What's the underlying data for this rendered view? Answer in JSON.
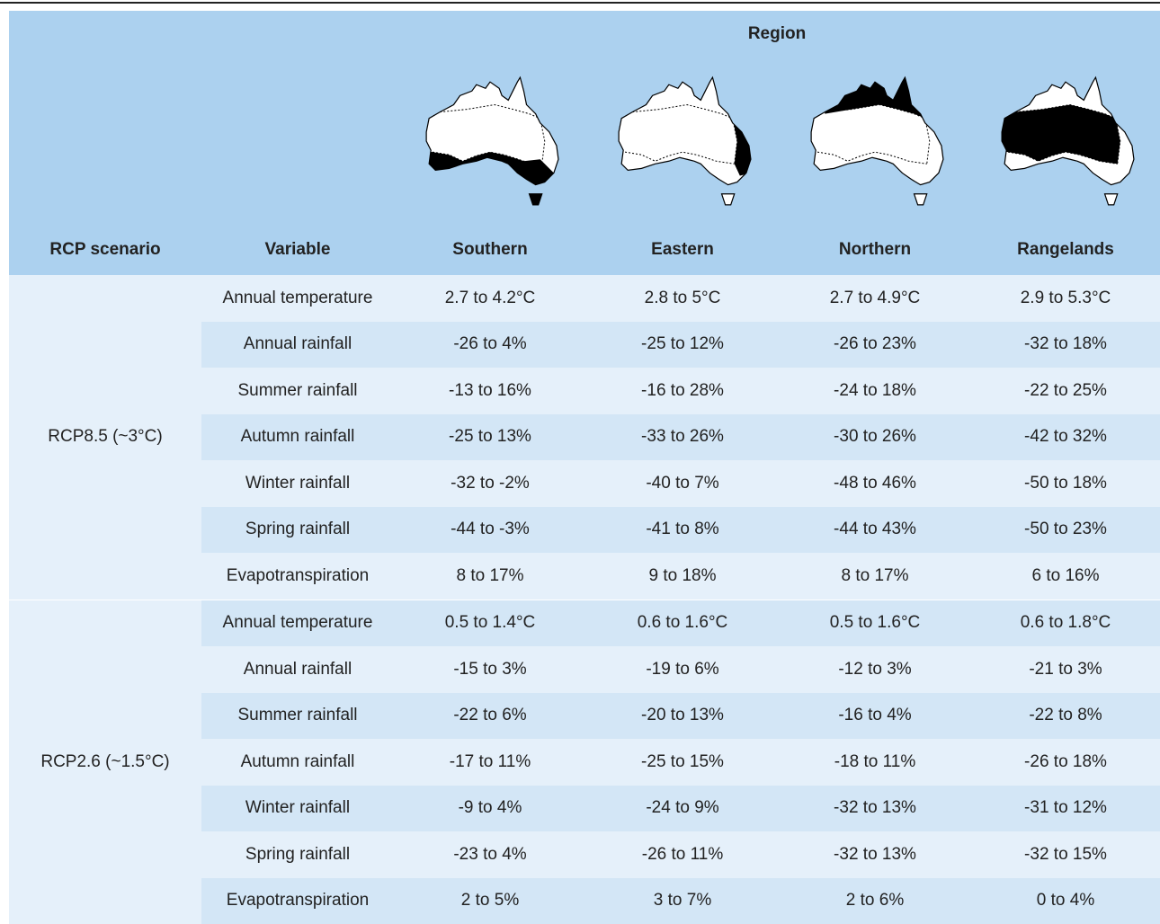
{
  "header": {
    "region": "Region",
    "columns": [
      "RCP scenario",
      "Variable",
      "Southern",
      "Eastern",
      "Northern",
      "Rangelands"
    ]
  },
  "groups": [
    {
      "scenario": "RCP8.5 (~3°C)",
      "rows": [
        [
          "Annual temperature",
          "2.7 to 4.2°C",
          "2.8 to 5°C",
          "2.7 to 4.9°C",
          "2.9 to 5.3°C"
        ],
        [
          "Annual rainfall",
          "-26 to 4%",
          "-25 to 12%",
          "-26 to 23%",
          "-32 to 18%"
        ],
        [
          "Summer rainfall",
          "-13 to 16%",
          "-16 to 28%",
          "-24 to 18%",
          "-22 to 25%"
        ],
        [
          "Autumn rainfall",
          "-25 to 13%",
          "-33 to 26%",
          "-30 to 26%",
          "-42 to 32%"
        ],
        [
          "Winter rainfall",
          "-32 to -2%",
          "-40 to 7%",
          "-48 to 46%",
          "-50 to 18%"
        ],
        [
          "Spring rainfall",
          "-44 to -3%",
          "-41 to 8%",
          "-44 to 43%",
          "-50 to 23%"
        ],
        [
          "Evapotranspiration",
          "8 to 17%",
          "9 to 18%",
          "8 to 17%",
          "6 to 16%"
        ]
      ]
    },
    {
      "scenario": "RCP2.6 (~1.5°C)",
      "rows": [
        [
          "Annual temperature",
          "0.5 to 1.4°C",
          "0.6 to 1.6°C",
          "0.5 to 1.6°C",
          "0.6 to 1.8°C"
        ],
        [
          "Annual rainfall",
          "-15 to 3%",
          "-19 to 6%",
          "-12 to 3%",
          "-21 to 3%"
        ],
        [
          "Summer rainfall",
          "-22 to 6%",
          "-20 to 13%",
          "-16 to 4%",
          "-22 to 8%"
        ],
        [
          "Autumn rainfall",
          "-17 to 11%",
          "-25 to 15%",
          "-18 to 11%",
          "-26 to 18%"
        ],
        [
          "Winter rainfall",
          "-9 to 4%",
          "-24 to 9%",
          "-32 to 13%",
          "-31 to 12%"
        ],
        [
          "Spring rainfall",
          "-23 to 4%",
          "-26 to 11%",
          "-32 to 13%",
          "-32 to 15%"
        ],
        [
          "Evapotranspiration",
          "2 to 5%",
          "3 to 7%",
          "2 to 6%",
          "0 to 4%"
        ]
      ]
    }
  ]
}
